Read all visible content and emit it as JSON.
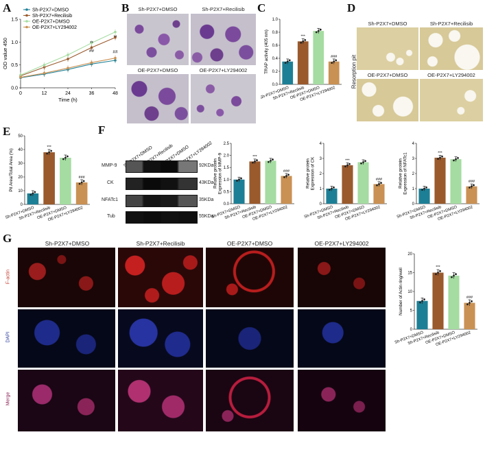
{
  "panel_labels": [
    "A",
    "B",
    "C",
    "D",
    "E",
    "F",
    "G"
  ],
  "colors": {
    "sh_dmso": "#1d7f95",
    "sh_recilisib": "#9a5a2c",
    "oe_dmso": "#a5dca1",
    "oe_ly": "#c99153"
  },
  "group_labels": [
    "Sh-P2X7+DMSO",
    "Sh-P2X7+Recilisib",
    "OE-P2X7+DMSO",
    "OE-P2X7+LY294002"
  ],
  "panelB": {
    "captions": [
      "Sh-P2X7+DMSO",
      "Sh-P2X7+Recilisib",
      "OE-P2X7+DMSO",
      "OE-P2X7+LY294002"
    ]
  },
  "panelD": {
    "captions": [
      "Sh-P2X7+DMSO",
      "Sh-P2X7+Recilisib",
      "OE-P2X7+DMSO",
      "OE-P2X7+LY294002"
    ],
    "side_label": "Resorption pit"
  },
  "panelF": {
    "blot_labels": [
      "MMP-9",
      "CK",
      "NFATc1",
      "Tub"
    ],
    "kda": [
      "92KDa",
      "43KDa",
      "35KDa",
      "55KDa"
    ],
    "lanes": [
      "Sh-P2X7+DMSO",
      "Sh-P2X7+Recilisib",
      "OE-P2X7+DMSO",
      "OE-P2X7+LY294002"
    ]
  },
  "panelG": {
    "columns": [
      "Sh-P2X7+DMSO",
      "Sh-P2X7+Recilisib",
      "OE-P2X7+DMSO",
      "OE-P2X7+LY294002"
    ],
    "rows": [
      "F-actin",
      "DAPI",
      "Merge"
    ]
  },
  "chart_data": [
    {
      "id": "A",
      "type": "line",
      "ylabel": "OD value 450",
      "xlabel": "Time (h)",
      "x": [
        0,
        12,
        24,
        36,
        48
      ],
      "xlim": [
        0,
        48
      ],
      "ylim": [
        0,
        1.5
      ],
      "yticks": [
        0.0,
        0.5,
        1.0,
        1.5
      ],
      "legend_position": "top-left",
      "series": [
        {
          "name": "Sh-P2X7+DMSO",
          "values": [
            0.22,
            0.3,
            0.4,
            0.52,
            0.6
          ]
        },
        {
          "name": "Sh-P2X7+Recilisib",
          "values": [
            0.26,
            0.45,
            0.63,
            0.88,
            1.1
          ]
        },
        {
          "name": "OE-P2X7+DMSO",
          "values": [
            0.28,
            0.5,
            0.72,
            0.98,
            1.22
          ]
        },
        {
          "name": "OE-P2X7+LY294002",
          "values": [
            0.23,
            0.32,
            0.43,
            0.55,
            0.65
          ]
        }
      ],
      "annotations": [
        "**",
        "##",
        "**",
        "##"
      ]
    },
    {
      "id": "C",
      "type": "bar",
      "ylabel": "TRAP activity (405 nm)",
      "categories": [
        "Sh-P2X7+DMSO",
        "Sh-P2X7+Recilisib",
        "OE-P2X7+DMSO",
        "OE-P2X7+LY294002"
      ],
      "values": [
        0.35,
        0.66,
        0.82,
        0.35
      ],
      "ylim": [
        0,
        1.0
      ],
      "yticks": [
        0.0,
        0.2,
        0.4,
        0.6,
        0.8,
        1.0
      ],
      "annotations": [
        "",
        "***",
        "",
        "###"
      ]
    },
    {
      "id": "E",
      "type": "bar",
      "ylabel": "Pit Area/Total Area (%)",
      "categories": [
        "Sh-P2X7+DMSO",
        "Sh-P2X7+Recilisib",
        "OE-P2X7+DMSO",
        "OE-P2X7+LY294002"
      ],
      "values": [
        8,
        38,
        34,
        16
      ],
      "ylim": [
        0,
        50
      ],
      "yticks": [
        0,
        10,
        20,
        30,
        40,
        50
      ],
      "annotations": [
        "",
        "***",
        "",
        "###"
      ]
    },
    {
      "id": "F1",
      "type": "bar",
      "ylabel": "Relative protein Expression of MMP-9",
      "categories": [
        "Sh-P2X7+DMSO",
        "Sh-P2X7+Recilisib",
        "OE-P2X7+DMSO",
        "OE-P2X7+LY294002"
      ],
      "values": [
        1.0,
        1.75,
        1.78,
        1.15
      ],
      "ylim": [
        0,
        2.5
      ],
      "yticks": [
        0.0,
        0.5,
        1.0,
        1.5,
        2.0,
        2.5
      ],
      "annotations": [
        "",
        "***",
        "",
        "###"
      ]
    },
    {
      "id": "F2",
      "type": "bar",
      "ylabel": "Relative protein Expression of CK",
      "categories": [
        "Sh-P2X7+DMSO",
        "Sh-P2X7+Recilisib",
        "OE-P2X7+DMSO",
        "OE-P2X7+LY294002"
      ],
      "values": [
        1.0,
        2.55,
        2.75,
        1.3
      ],
      "ylim": [
        0,
        4
      ],
      "yticks": [
        0,
        1,
        2,
        3,
        4
      ],
      "annotations": [
        "",
        "***",
        "",
        "###"
      ]
    },
    {
      "id": "F3",
      "type": "bar",
      "ylabel": "Relative protein Expression of NFATc1",
      "categories": [
        "Sh-P2X7+DMSO",
        "Sh-P2X7+Recilisib",
        "OE-P2X7+DMSO",
        "OE-P2X7+LY294002"
      ],
      "values": [
        1.0,
        3.05,
        2.95,
        1.15
      ],
      "ylim": [
        0,
        4
      ],
      "yticks": [
        0,
        1,
        2,
        3,
        4
      ],
      "annotations": [
        "",
        "***",
        "",
        "###"
      ]
    },
    {
      "id": "G",
      "type": "bar",
      "ylabel": "Number of Actin ring/well",
      "categories": [
        "Sh-P2X7+DMSO",
        "Sh-P2X7+Recilisib",
        "OE-P2X7+DMSO",
        "OE-P2X7+LY294002"
      ],
      "values": [
        7.5,
        15,
        14.2,
        7
      ],
      "ylim": [
        0,
        20
      ],
      "yticks": [
        0,
        5,
        10,
        15,
        20
      ],
      "annotations": [
        "",
        "***",
        "",
        "###"
      ]
    }
  ]
}
